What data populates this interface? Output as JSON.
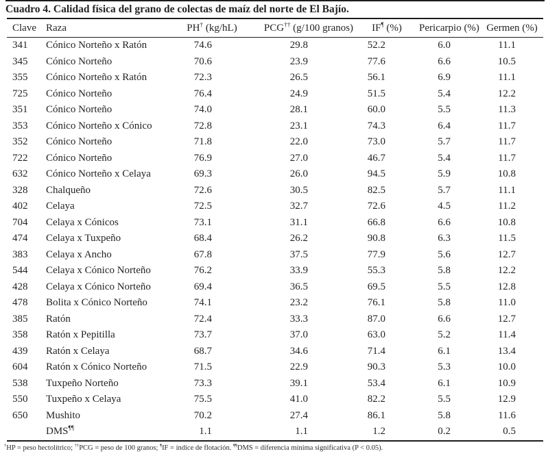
{
  "title": "Cuadro 4. Calidad física del grano de colectas de maíz del norte de El Bajío.",
  "colors": {
    "text": "#232323",
    "rule": "#1c1c1c",
    "background": "#ffffff"
  },
  "table": {
    "headers": [
      {
        "label": "Clave",
        "sup": "",
        "unit": ""
      },
      {
        "label": "Raza",
        "sup": "",
        "unit": ""
      },
      {
        "label": "PH",
        "sup": "†",
        "unit": " (kg/hL)"
      },
      {
        "label": "PCG",
        "sup": "††",
        "unit": " (g/100 granos)"
      },
      {
        "label": "IF",
        "sup": "¶",
        "unit": " (%)"
      },
      {
        "label": "Pericarpio",
        "sup": "",
        "unit": " (%)"
      },
      {
        "label": "Germen",
        "sup": "",
        "unit": " (%)"
      }
    ],
    "rows": [
      {
        "clave": "341",
        "raza": "Cónico Norteño x Ratón",
        "razaSup": "",
        "ph": "74.6",
        "pcg": "29.8",
        "ifv": "52.2",
        "per": "6.0",
        "ger": "11.1"
      },
      {
        "clave": "345",
        "raza": "Cónico Norteño",
        "razaSup": "",
        "ph": "70.6",
        "pcg": "23.9",
        "ifv": "77.6",
        "per": "6.6",
        "ger": "10.5"
      },
      {
        "clave": "355",
        "raza": "Cónico Norteño x Ratón",
        "razaSup": "",
        "ph": "72.3",
        "pcg": "26.5",
        "ifv": "56.1",
        "per": "6.9",
        "ger": "11.1"
      },
      {
        "clave": "725",
        "raza": "Cónico Norteño",
        "razaSup": "",
        "ph": "76.4",
        "pcg": "24.9",
        "ifv": "51.5",
        "per": "5.4",
        "ger": "12.2"
      },
      {
        "clave": "351",
        "raza": "Cónico Norteño",
        "razaSup": "",
        "ph": "74.0",
        "pcg": "28.1",
        "ifv": "60.0",
        "per": "5.5",
        "ger": "11.3"
      },
      {
        "clave": "353",
        "raza": "Cónico Norteño x Cónico",
        "razaSup": "",
        "ph": "72.8",
        "pcg": "23.1",
        "ifv": "74.3",
        "per": "6.4",
        "ger": "11.7"
      },
      {
        "clave": "352",
        "raza": "Cónico Norteño",
        "razaSup": "",
        "ph": "71.8",
        "pcg": "22.0",
        "ifv": "73.0",
        "per": "5.7",
        "ger": "11.7"
      },
      {
        "clave": "722",
        "raza": "Cónico Norteño",
        "razaSup": "",
        "ph": "76.9",
        "pcg": "27.0",
        "ifv": "46.7",
        "per": "5.4",
        "ger": "11.7"
      },
      {
        "clave": "632",
        "raza": "Cónico Norteño x Celaya",
        "razaSup": "",
        "ph": "69.3",
        "pcg": "26.0",
        "ifv": "94.5",
        "per": "5.9",
        "ger": "10.8"
      },
      {
        "clave": "328",
        "raza": "Chalqueño",
        "razaSup": "",
        "ph": "72.6",
        "pcg": "30.5",
        "ifv": "82.5",
        "per": "5.7",
        "ger": "11.1"
      },
      {
        "clave": "402",
        "raza": "Celaya",
        "razaSup": "",
        "ph": "72.5",
        "pcg": "32.7",
        "ifv": "72.6",
        "per": "4.5",
        "ger": "11.2"
      },
      {
        "clave": "704",
        "raza": "Celaya x Cónicos",
        "razaSup": "",
        "ph": "73.1",
        "pcg": "31.1",
        "ifv": "66.8",
        "per": "6.6",
        "ger": "10.8"
      },
      {
        "clave": "474",
        "raza": "Celaya x Tuxpeño",
        "razaSup": "",
        "ph": "68.4",
        "pcg": "26.2",
        "ifv": "90.8",
        "per": "6.3",
        "ger": "11.5"
      },
      {
        "clave": "383",
        "raza": "Celaya x Ancho",
        "razaSup": "",
        "ph": "67.8",
        "pcg": "37.5",
        "ifv": "77.9",
        "per": "5.6",
        "ger": "12.7"
      },
      {
        "clave": "544",
        "raza": "Celaya x Cónico Norteño",
        "razaSup": "",
        "ph": "76.2",
        "pcg": "33.9",
        "ifv": "55.3",
        "per": "5.8",
        "ger": "12.2"
      },
      {
        "clave": "428",
        "raza": "Celaya x Cónico Norteño",
        "razaSup": "",
        "ph": "69.4",
        "pcg": "36.5",
        "ifv": "69.5",
        "per": "5.5",
        "ger": "12.8"
      },
      {
        "clave": "478",
        "raza": "Bolita x Cónico Norteño",
        "razaSup": "",
        "ph": "74.1",
        "pcg": "23.2",
        "ifv": "76.1",
        "per": "5.8",
        "ger": "11.0"
      },
      {
        "clave": "385",
        "raza": "Ratón",
        "razaSup": "",
        "ph": "72.4",
        "pcg": "33.3",
        "ifv": "87.0",
        "per": "6.6",
        "ger": "12.7"
      },
      {
        "clave": "358",
        "raza": "Ratón x Pepitilla",
        "razaSup": "",
        "ph": "73.7",
        "pcg": "37.0",
        "ifv": "63.0",
        "per": "5.2",
        "ger": "11.4"
      },
      {
        "clave": "439",
        "raza": "Ratón x Celaya",
        "razaSup": "",
        "ph": "68.7",
        "pcg": "34.6",
        "ifv": "71.4",
        "per": "6.1",
        "ger": "13.4"
      },
      {
        "clave": "604",
        "raza": "Ratón x Cónico Norteño",
        "razaSup": "",
        "ph": "71.5",
        "pcg": "22.9",
        "ifv": "90.3",
        "per": "5.3",
        "ger": "10.0"
      },
      {
        "clave": "538",
        "raza": "Tuxpeño Norteño",
        "razaSup": "",
        "ph": "73.3",
        "pcg": "39.1",
        "ifv": "53.4",
        "per": "6.1",
        "ger": "10.9"
      },
      {
        "clave": "550",
        "raza": "Tuxpeño x Celaya",
        "razaSup": "",
        "ph": "75.5",
        "pcg": "41.0",
        "ifv": "82.2",
        "per": "5.5",
        "ger": "12.9"
      },
      {
        "clave": "650",
        "raza": "Mushito",
        "razaSup": "",
        "ph": "70.2",
        "pcg": "27.4",
        "ifv": "86.1",
        "per": "5.8",
        "ger": "11.6"
      },
      {
        "clave": "",
        "raza": "DMS",
        "razaSup": "¶¶",
        "ph": "1.1",
        "pcg": "1.1",
        "ifv": "1.2",
        "per": "0.2",
        "ger": "0.5"
      }
    ]
  },
  "footnote": {
    "segments": [
      {
        "sup": "†",
        "text": "HP = peso hectolítrico; "
      },
      {
        "sup": "††",
        "text": "PCG = peso de 100 granos; "
      },
      {
        "sup": "¶",
        "text": "IF = índice de flotación. "
      },
      {
        "sup": "¶¶",
        "text": "DMS = diferencia mínima significativa (P < 0.05)."
      }
    ]
  }
}
